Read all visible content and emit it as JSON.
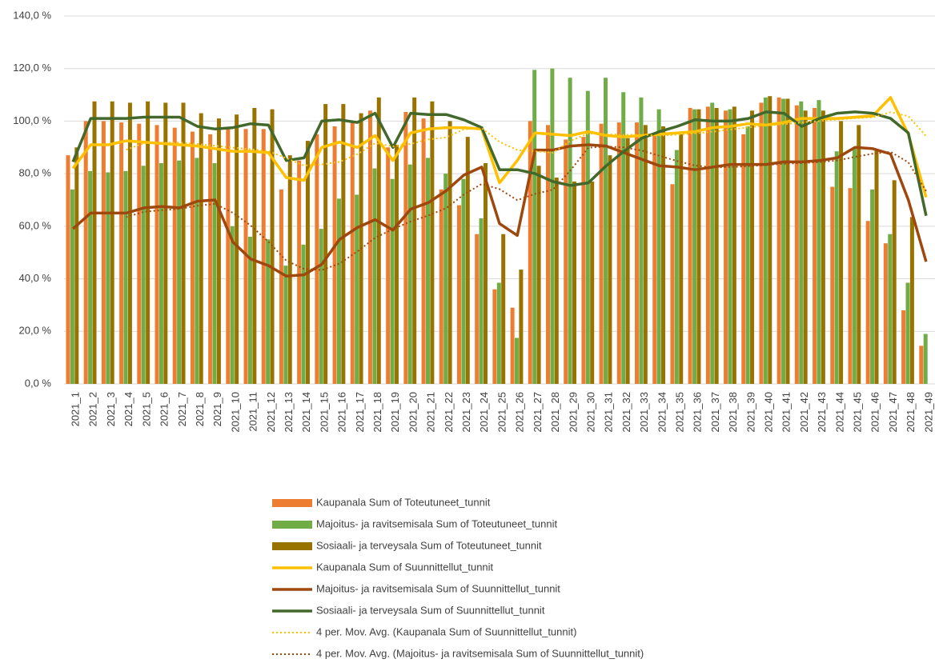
{
  "chart_data": {
    "type": "combo",
    "categories": [
      "2021_1",
      "2021_2",
      "2021_3",
      "2021_4",
      "2021_5",
      "2021_6",
      "2021_7",
      "2021_8",
      "2021_9",
      "2021_10",
      "2021_11",
      "2021_12",
      "2021_13",
      "2021_14",
      "2021_15",
      "2021_16",
      "2021_17",
      "2021_18",
      "2021_19",
      "2021_20",
      "2021_21",
      "2021_22",
      "2021_23",
      "2021_24",
      "2021_25",
      "2021_26",
      "2021_27",
      "2021_28",
      "2021_29",
      "2021_30",
      "2021_31",
      "2021_32",
      "2021_33",
      "2021_34",
      "2021_35",
      "2021_36",
      "2021_37",
      "2021_38",
      "2021_39",
      "2021_40",
      "2021_41",
      "2021_42",
      "2021_43",
      "2021_44",
      "2021_45",
      "2021_46",
      "2021_47",
      "2021_48",
      "2021_49"
    ],
    "ylim": [
      0,
      140
    ],
    "yticks": [
      {
        "value": 0,
        "label": "0,0 %"
      },
      {
        "value": 20,
        "label": "20,0 %"
      },
      {
        "value": 40,
        "label": "40,0 %"
      },
      {
        "value": 60,
        "label": "60,0 %"
      },
      {
        "value": 80,
        "label": "80,0 %"
      },
      {
        "value": 100,
        "label": "100,0 %"
      },
      {
        "value": 120,
        "label": "120,0 %"
      },
      {
        "value": 140,
        "label": "140,0 %"
      }
    ],
    "grid": true,
    "series": [
      {
        "name": "Kaupanala Sum of Toteutuneet_tunnit",
        "type": "bar",
        "color": "#ED7D31",
        "values": [
          87,
          100,
          100,
          99.5,
          99,
          98.5,
          97.5,
          96,
          95,
          97,
          97,
          97,
          74,
          85,
          95,
          98,
          100,
          104,
          90,
          103.5,
          101,
          74,
          68,
          57,
          36,
          29,
          100,
          98.5,
          93,
          94,
          99,
          99.5,
          99.5,
          95,
          76,
          105,
          105.5,
          104,
          95,
          107,
          109,
          106,
          105,
          75,
          74.5,
          62,
          53.5,
          28,
          14.5
        ]
      },
      {
        "name": "Majoitus- ja ravitsemisala Sum of Toteutuneet_tunnit",
        "type": "bar",
        "color": "#70AD47",
        "values": [
          74,
          81,
          80.5,
          81,
          83,
          84,
          85,
          86,
          84,
          60,
          56,
          55,
          45,
          53,
          59,
          70.5,
          72,
          82,
          78,
          83.5,
          86,
          80,
          78,
          63,
          38.5,
          17.5,
          119.5,
          120,
          116.5,
          111.5,
          116.5,
          111,
          109,
          104.5,
          89,
          104.5,
          107,
          104.5,
          98,
          109,
          108.5,
          107.5,
          108,
          88.5,
          90,
          74,
          57,
          38.5,
          19
        ]
      },
      {
        "name": "Sosiaali- ja terveysala Sum of Toteutuneet_tunnit",
        "type": "bar",
        "color": "#997300",
        "values": [
          90,
          107.5,
          107.5,
          107,
          107.5,
          107,
          107,
          103,
          101,
          102.5,
          105,
          104.5,
          87,
          92.5,
          106.5,
          106.5,
          103,
          109,
          91,
          109,
          107.5,
          100,
          94,
          84,
          57,
          43.5,
          83,
          78.5,
          77,
          77,
          87,
          93.5,
          98.5,
          98,
          95,
          104.5,
          105,
          105.5,
          104,
          109.5,
          108.5,
          104,
          104,
          100,
          98.5,
          89,
          77.5,
          63.5,
          null
        ]
      },
      {
        "name": "Kaupanala Sum of Suunnittellut_tunnit",
        "type": "line",
        "color": "#FFC000",
        "values": [
          82,
          91,
          91,
          92.5,
          92,
          91.5,
          91,
          90.5,
          89.5,
          88.5,
          88.5,
          88,
          78.5,
          77.5,
          90,
          92,
          90,
          94.5,
          85,
          95.5,
          97,
          97.5,
          97.5,
          97,
          76.5,
          85,
          95.5,
          95,
          94.5,
          96,
          94.5,
          94,
          94.5,
          95,
          95.5,
          96,
          97.5,
          98,
          99,
          98.5,
          99.5,
          101,
          101,
          101,
          101.5,
          102,
          109,
          95,
          71
        ]
      },
      {
        "name": "Majoitus- ja ravitsemisala Sum of Suunnittellut_tunnit",
        "type": "line",
        "color": "#9E480E",
        "values": [
          59,
          65,
          65,
          65,
          67,
          67.5,
          67,
          69.5,
          70,
          54,
          47.5,
          45,
          41,
          41.5,
          45.5,
          55,
          59.5,
          62.5,
          58.5,
          66.5,
          69,
          73.5,
          79.5,
          82.5,
          61,
          56.5,
          89,
          89,
          90.5,
          91,
          90.5,
          88,
          85.5,
          83,
          82.5,
          81.5,
          82.5,
          83.5,
          83.5,
          83.5,
          84.5,
          84.5,
          85,
          86,
          90,
          89.5,
          87.5,
          70,
          46.5
        ]
      },
      {
        "name": "Sosiaali- ja terveysala Sum of Suunnittellut_tunnit",
        "type": "line",
        "color": "#43682B",
        "values": [
          84.5,
          101,
          101,
          101,
          101.5,
          101.5,
          101.5,
          98,
          97,
          97.5,
          99,
          98.5,
          85,
          86,
          100,
          100.5,
          99.5,
          103,
          90,
          103,
          102.5,
          102.5,
          100.5,
          97.5,
          81.5,
          81.5,
          80,
          77,
          75.5,
          76.5,
          83,
          88.5,
          93.5,
          96,
          98,
          100.5,
          100,
          100,
          101,
          103.5,
          103,
          98,
          101,
          103,
          103.5,
          103,
          101,
          95.5,
          64
        ]
      },
      {
        "name": "4 per. Mov. Avg. (Kaupanala Sum of Suunnittellut_tunnit)",
        "type": "dotted",
        "color": "#FFC000",
        "values": [
          null,
          null,
          null,
          89.1,
          91.6,
          91.8,
          91.8,
          91.3,
          90.6,
          89.9,
          89.3,
          88.6,
          85.9,
          83.1,
          83.5,
          84.5,
          87.4,
          91.6,
          90.4,
          91.3,
          93,
          93.8,
          96.9,
          97.3,
          92.1,
          89,
          88.5,
          88,
          92.5,
          95.3,
          95,
          94.8,
          94.8,
          94.5,
          94.8,
          95.3,
          96,
          96.8,
          97.6,
          98.3,
          98.8,
          99.5,
          100,
          100.6,
          101.1,
          101.4,
          103.4,
          101.9,
          94.3
        ]
      },
      {
        "name": "4 per. Mov. Avg. (Majoitus- ja ravitsemisala Sum of Suunnittellut_tunnit)",
        "type": "dotted",
        "color": "#9E480E",
        "values": [
          null,
          null,
          null,
          63.5,
          65.5,
          66.1,
          66.6,
          67.8,
          68.5,
          65.1,
          60.3,
          54.1,
          46.9,
          43.8,
          43.3,
          45.8,
          50.4,
          55.6,
          58.9,
          61.8,
          64.1,
          66.9,
          72.1,
          76.1,
          74.1,
          69.9,
          72.3,
          73.9,
          81.3,
          89.9,
          90.3,
          90,
          88.8,
          86.8,
          84.8,
          83.1,
          82.4,
          82.5,
          82.8,
          83.3,
          83.8,
          84,
          84.4,
          85,
          86.4,
          87.6,
          88.3,
          84.3,
          73.4
        ]
      }
    ]
  }
}
